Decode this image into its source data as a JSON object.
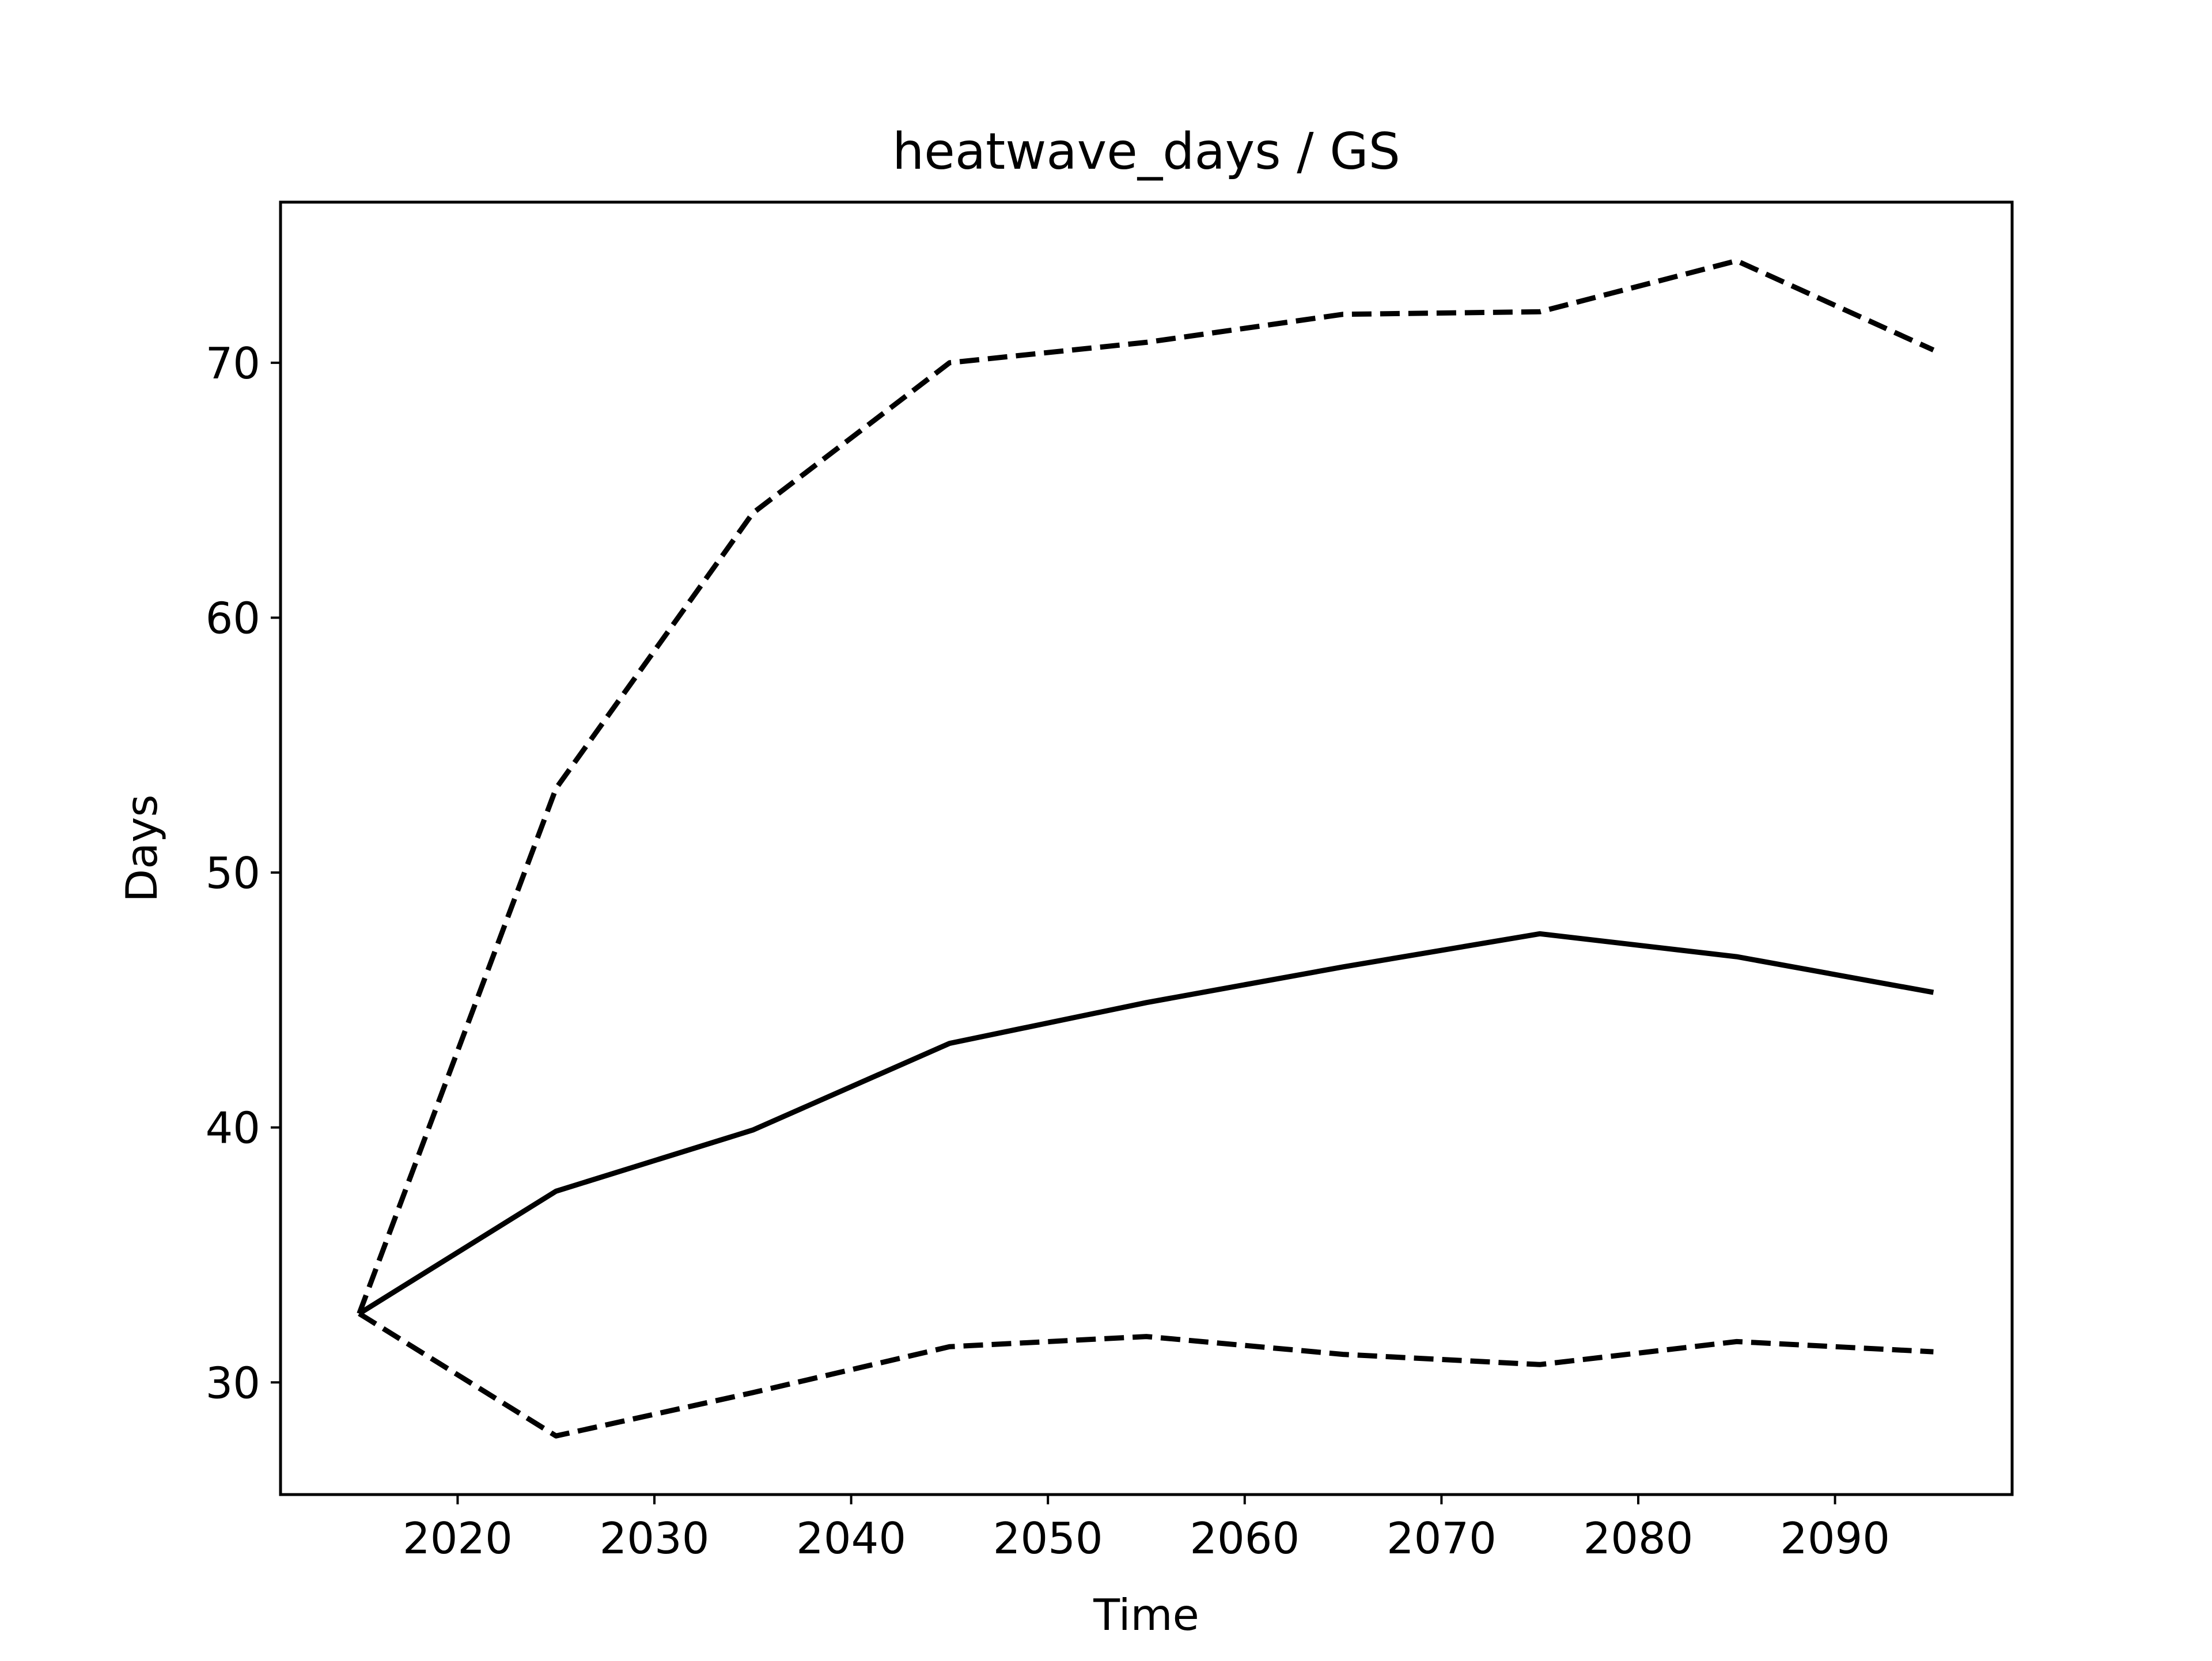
{
  "chart_data": {
    "type": "line",
    "title": "heatwave_days / GS",
    "xlabel": "Time",
    "ylabel": "Days",
    "xlim": [
      2011,
      2099
    ],
    "ylim": [
      25.6,
      76.3
    ],
    "xticks": [
      2020,
      2030,
      2040,
      2050,
      2060,
      2070,
      2080,
      2090
    ],
    "yticks": [
      30,
      40,
      50,
      60,
      70
    ],
    "grid": false,
    "legend": "none",
    "x": [
      2015,
      2025,
      2035,
      2045,
      2055,
      2065,
      2075,
      2085,
      2095
    ],
    "series": [
      {
        "style": "dashed",
        "color": "#000000",
        "values": [
          32.7,
          53.3,
          64.1,
          70.0,
          70.8,
          71.9,
          72.0,
          74.0,
          70.5
        ]
      },
      {
        "style": "solid",
        "color": "#000000",
        "values": [
          32.7,
          37.5,
          39.9,
          43.3,
          44.9,
          46.3,
          47.6,
          46.7,
          45.3
        ]
      },
      {
        "style": "dashed",
        "color": "#000000",
        "values": [
          32.7,
          27.9,
          29.6,
          31.4,
          31.8,
          31.1,
          30.7,
          31.6,
          31.2
        ]
      }
    ]
  }
}
